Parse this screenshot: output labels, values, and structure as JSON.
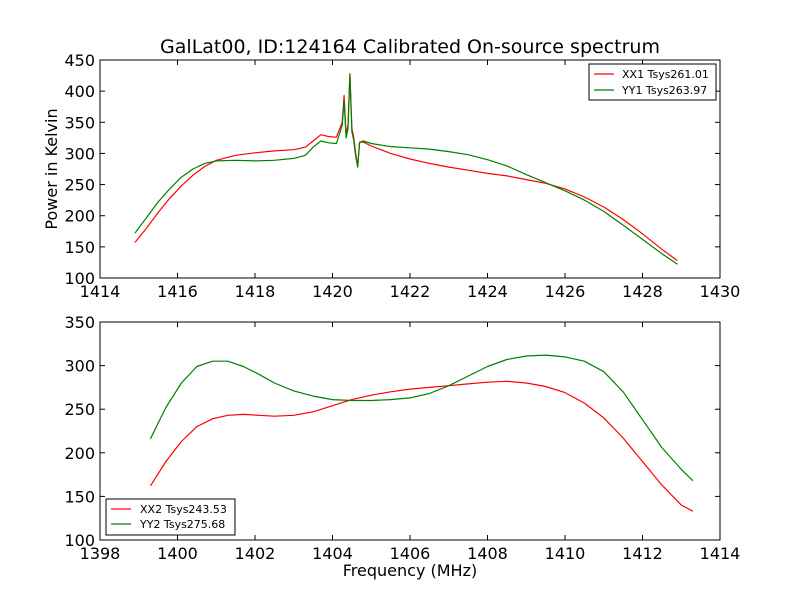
{
  "figure": {
    "title": "GalLat00, ID:124164 Calibrated On-source spectrum"
  },
  "chart_data": [
    {
      "type": "line",
      "title": "GalLat00, ID:124164 Calibrated On-source spectrum",
      "xlabel": "",
      "ylabel": "Power in Kelvin",
      "xlim": [
        1414,
        1430
      ],
      "ylim": [
        100,
        450
      ],
      "xticks": [
        1414,
        1416,
        1418,
        1420,
        1422,
        1424,
        1426,
        1428,
        1430
      ],
      "yticks": [
        100,
        150,
        200,
        250,
        300,
        350,
        400,
        450
      ],
      "grid": false,
      "legend_position": "top-right",
      "series": [
        {
          "name": "XX1 Tsys261.01",
          "color": "#ff0000",
          "x": [
            1414.9,
            1415.2,
            1415.5,
            1415.8,
            1416.1,
            1416.4,
            1416.7,
            1417.0,
            1417.5,
            1418.0,
            1418.5,
            1419.0,
            1419.3,
            1419.5,
            1419.7,
            1419.9,
            1420.1,
            1420.25,
            1420.3,
            1420.35,
            1420.4,
            1420.45,
            1420.5,
            1420.55,
            1420.6,
            1420.65,
            1420.7,
            1420.8,
            1421.0,
            1421.5,
            1422.0,
            1422.5,
            1423.0,
            1423.5,
            1424.0,
            1424.5,
            1425.0,
            1425.5,
            1426.0,
            1426.5,
            1427.0,
            1427.5,
            1428.0,
            1428.5,
            1428.9
          ],
          "y": [
            157,
            180,
            205,
            228,
            248,
            265,
            279,
            289,
            297,
            301,
            304,
            306,
            310,
            320,
            330,
            327,
            326,
            350,
            393,
            330,
            345,
            428,
            340,
            325,
            300,
            280,
            318,
            318,
            312,
            300,
            291,
            284,
            278,
            273,
            268,
            264,
            258,
            252,
            243,
            230,
            214,
            194,
            171,
            146,
            128
          ]
        },
        {
          "name": "YY1 Tsys263.97",
          "color": "#008000",
          "x": [
            1414.9,
            1415.2,
            1415.5,
            1415.8,
            1416.1,
            1416.4,
            1416.7,
            1417.0,
            1417.5,
            1418.0,
            1418.5,
            1419.0,
            1419.3,
            1419.5,
            1419.7,
            1419.9,
            1420.1,
            1420.25,
            1420.3,
            1420.35,
            1420.4,
            1420.45,
            1420.5,
            1420.55,
            1420.6,
            1420.65,
            1420.7,
            1420.8,
            1421.0,
            1421.5,
            1422.0,
            1422.5,
            1423.0,
            1423.5,
            1424.0,
            1424.5,
            1425.0,
            1425.5,
            1426.0,
            1426.5,
            1427.0,
            1427.5,
            1428.0,
            1428.5,
            1428.9
          ],
          "y": [
            172,
            197,
            222,
            243,
            262,
            275,
            284,
            288,
            289,
            288,
            289,
            292,
            297,
            310,
            320,
            317,
            316,
            345,
            385,
            325,
            340,
            425,
            335,
            320,
            295,
            278,
            318,
            320,
            316,
            311,
            309,
            307,
            303,
            298,
            290,
            280,
            266,
            253,
            240,
            225,
            207,
            185,
            162,
            139,
            122
          ]
        }
      ]
    },
    {
      "type": "line",
      "title": "",
      "xlabel": "Frequency (MHz)",
      "ylabel": "",
      "xlim": [
        1398,
        1414
      ],
      "ylim": [
        100,
        350
      ],
      "xticks": [
        1398,
        1400,
        1402,
        1404,
        1406,
        1408,
        1410,
        1412,
        1414
      ],
      "yticks": [
        100,
        150,
        200,
        250,
        300,
        350
      ],
      "grid": false,
      "legend_position": "bottom-left",
      "series": [
        {
          "name": "XX2 Tsys243.53",
          "color": "#ff0000",
          "x": [
            1399.3,
            1399.7,
            1400.1,
            1400.5,
            1400.9,
            1401.3,
            1401.7,
            1402.1,
            1402.5,
            1403.0,
            1403.5,
            1404.0,
            1404.5,
            1405.0,
            1405.5,
            1406.0,
            1406.5,
            1407.0,
            1407.5,
            1408.0,
            1408.5,
            1409.0,
            1409.5,
            1410.0,
            1410.5,
            1411.0,
            1411.5,
            1412.0,
            1412.5,
            1413.0,
            1413.3
          ],
          "y": [
            162,
            190,
            213,
            230,
            239,
            243,
            244,
            243,
            242,
            243,
            247,
            254,
            261,
            266,
            270,
            273,
            275,
            277,
            279,
            281,
            282,
            280,
            276,
            269,
            257,
            240,
            217,
            190,
            163,
            140,
            133
          ]
        },
        {
          "name": "YY2 Tsys275.68",
          "color": "#008000",
          "x": [
            1399.3,
            1399.7,
            1400.1,
            1400.5,
            1400.9,
            1401.3,
            1401.7,
            1402.1,
            1402.5,
            1403.0,
            1403.5,
            1404.0,
            1404.5,
            1405.0,
            1405.5,
            1406.0,
            1406.5,
            1407.0,
            1407.5,
            1408.0,
            1408.5,
            1409.0,
            1409.5,
            1410.0,
            1410.5,
            1411.0,
            1411.5,
            1412.0,
            1412.5,
            1413.0,
            1413.3
          ],
          "y": [
            216,
            252,
            280,
            299,
            305,
            305,
            299,
            290,
            280,
            271,
            265,
            261,
            260,
            260,
            261,
            263,
            268,
            277,
            288,
            299,
            307,
            311,
            312,
            310,
            305,
            293,
            270,
            238,
            206,
            181,
            168
          ]
        }
      ]
    }
  ]
}
